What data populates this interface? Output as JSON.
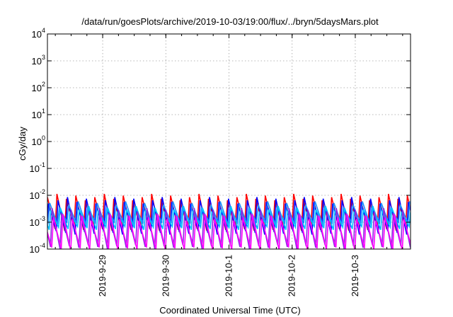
{
  "chart_data": {
    "type": "line",
    "title": "/data/run/goesPlots/archive/2019-10-03/19:00/flux/../bryn/5daysMars.plot",
    "xlabel": "Coordinated Universal Time (UTC)",
    "ylabel": "cGy/day",
    "y_scale": "log",
    "ylim": [
      0.0001,
      10000
    ],
    "xlim": [
      "2019-09-28 03:00",
      "2019-10-03 21:00"
    ],
    "grid": true,
    "legend": "none",
    "y_ticks": [
      {
        "base": "10",
        "exp": "-4",
        "value": 0.0001
      },
      {
        "base": "10",
        "exp": "-3",
        "value": 0.001
      },
      {
        "base": "10",
        "exp": "-2",
        "value": 0.01
      },
      {
        "base": "10",
        "exp": "-1",
        "value": 0.1
      },
      {
        "base": "10",
        "exp": "0",
        "value": 1
      },
      {
        "base": "10",
        "exp": "1",
        "value": 10
      },
      {
        "base": "10",
        "exp": "2",
        "value": 100
      },
      {
        "base": "10",
        "exp": "3",
        "value": 1000
      },
      {
        "base": "10",
        "exp": "4",
        "value": 10000
      }
    ],
    "x_ticks": [
      "2019-9-29",
      "2019-9-30",
      "2019-10-1",
      "2019-10-2",
      "2019-10-3"
    ],
    "oscillation": {
      "period_hours": 3.6,
      "start": "2019-09-28 03:00",
      "end": "2019-10-03 21:00"
    },
    "series": [
      {
        "color": "#ff0000",
        "peak": 0.0085,
        "trough": 0.00055,
        "phase_hours": 0.0
      },
      {
        "color": "#0000ff",
        "peak": 0.0065,
        "trough": 0.0004,
        "phase_hours": 0.4
      },
      {
        "color": "#1e90ff",
        "peak": 0.0045,
        "trough": 0.0009,
        "phase_hours": 0.9
      },
      {
        "color": "#00bfff",
        "peak": 0.003,
        "trough": 0.0006,
        "phase_hours": 1.3
      },
      {
        "color": "#8a2be2",
        "peak": 0.0025,
        "trough": 0.00012,
        "phase_hours": 1.8
      },
      {
        "color": "#ff00ff",
        "peak": 0.0015,
        "trough": 0.0001,
        "phase_hours": 2.3
      }
    ]
  }
}
